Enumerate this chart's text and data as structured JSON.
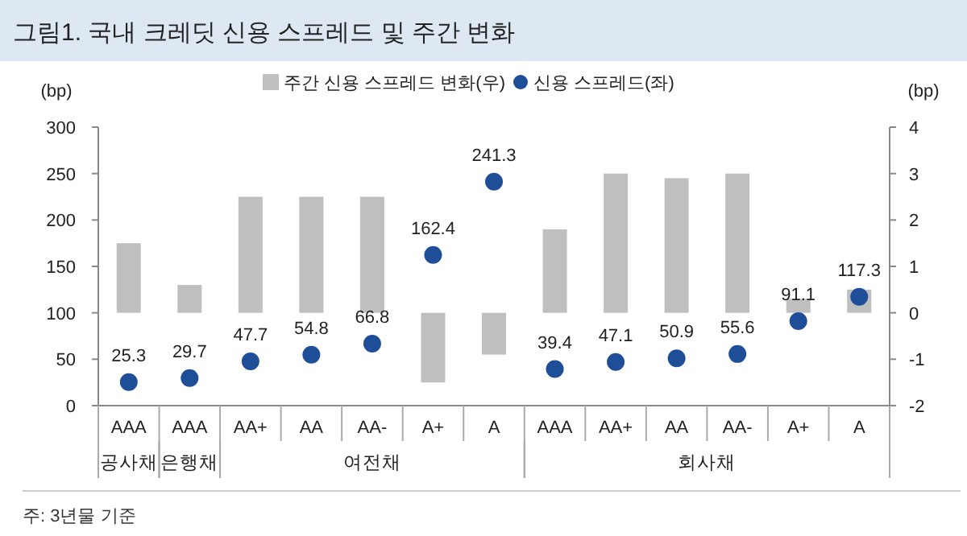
{
  "chart_data": {
    "type": "bar",
    "title": "그림1. 국내 크레딧 신용 스프레드 및 주간 변화",
    "ylabel": "(bp)",
    "y2label": "(bp)",
    "categories": [
      "AAA",
      "AAA",
      "AA+",
      "AA",
      "AA-",
      "A+",
      "A",
      "AAA",
      "AA+",
      "AA",
      "AA-",
      "A+",
      "A"
    ],
    "series": [
      {
        "name": "주간 신용 스프레드 변화(우)",
        "axis": "y2",
        "color": "#bfbfbf",
        "values": [
          1.5,
          0.6,
          2.5,
          2.5,
          2.5,
          -1.5,
          -0.9,
          1.8,
          3.0,
          2.9,
          3.0,
          0.3,
          0.5
        ]
      },
      {
        "name": "신용 스프레드(좌)",
        "type": "scatter",
        "marker": "circle",
        "color": "#1f4e99",
        "data_labels": true,
        "values": [
          25.3,
          29.7,
          47.7,
          54.8,
          66.8,
          162.4,
          241.3,
          39.4,
          47.1,
          50.9,
          55.6,
          91.1,
          117.3
        ]
      }
    ],
    "ylim": [
      0,
      300
    ],
    "yticks": [
      0,
      50,
      100,
      150,
      200,
      250,
      300
    ],
    "y2lim": [
      -2,
      4
    ],
    "y2ticks": [
      -2,
      -1,
      0,
      1,
      2,
      3,
      4
    ],
    "legend": "top",
    "grid": false,
    "annotations": [
      "공사채",
      "은행채",
      "여전채",
      "회사채",
      "주: 3년물 기준"
    ]
  }
}
